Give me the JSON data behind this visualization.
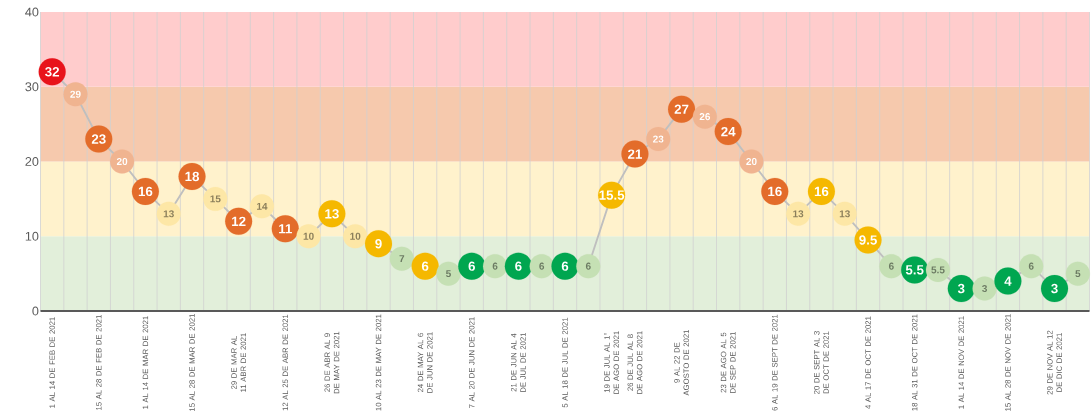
{
  "chart_data": {
    "type": "line",
    "categories": [
      "1 AL 14 DE FEB DE 2021",
      null,
      "15 AL 28 DE FEB DE 2021",
      null,
      "1 AL 14 DE MAR DE 2021",
      null,
      "15 AL 28 DE MAR DE 2021",
      null,
      "29 DE MAR AL 11 ABR DE 2021",
      null,
      "12 AL 25 DE ABR DE 2021",
      null,
      "26 DE ABR AL 9 DE MAY DE 2021",
      null,
      "10 AL 23 DE MAY DE 2021",
      null,
      "24 DE MAY AL 6 DE JUN DE 2021",
      null,
      "7 AL 20 DE JUN DE 2021",
      null,
      "21 DE JUN AL 4 DE JUL DE 2021",
      null,
      "5 AL 18 DE JUL DE 2021",
      null,
      "19 DE JUL AL 1° DE AGO DE 2021",
      "26 DE JUL AL 8 DE AGO DE 2021",
      null,
      "9 AL 22 DE AGOSTO DE 2021",
      null,
      "23 DE AGO AL 5 DE SEP DE 2021",
      null,
      "6 AL 19 DE SEPT DE 2021",
      null,
      "20 DE SEPT AL 3 DE OCT DE 2021",
      null,
      "4 AL 17 DE OCT DE 2021",
      null,
      "18 AL 31 DE OCT DE 2021",
      null,
      "1 AL 14 DE NOV DE 2021",
      null,
      "15 AL 28 DE NOV DE 2021",
      null,
      "29 DE NOV AL 12 DE DIC DE 2021",
      null
    ],
    "values": [
      32,
      29,
      23,
      20,
      16,
      13,
      18,
      15,
      12,
      14,
      11,
      10,
      13,
      10,
      9,
      7,
      6,
      5,
      6,
      6,
      6,
      6,
      6,
      6,
      15.5,
      21,
      23,
      27,
      26,
      24,
      20,
      16,
      13,
      16,
      13,
      9.5,
      6,
      5.5,
      5.5,
      3,
      3,
      4,
      6,
      3,
      5
    ],
    "color": "#bfbfbf",
    "colors": [
      "#e8131b",
      "#f0b490",
      "#e36c2a",
      "#f0b490",
      "#e36c2a",
      "#fde7a6",
      "#e36c2a",
      "#fde7a6",
      "#e36c2a",
      "#fde7a6",
      "#e36c2a",
      "#fde7a6",
      "#f5b800",
      "#fde7a6",
      "#f5b800",
      "#c5e0b4",
      "#f5b800",
      "#c5e0b4",
      "#00a650",
      "#c5e0b4",
      "#00a650",
      "#c5e0b4",
      "#00a650",
      "#c5e0b4",
      "#f5b800",
      "#e36c2a",
      "#f0b490",
      "#e36c2a",
      "#f0b490",
      "#e36c2a",
      "#f0b490",
      "#e36c2a",
      "#fde7a6",
      "#f5b800",
      "#fde7a6",
      "#f5b800",
      "#c5e0b4",
      "#00a650",
      "#c5e0b4",
      "#00a650",
      "#c5e0b4",
      "#00a650",
      "#c5e0b4",
      "#00a650",
      "#c5e0b4"
    ],
    "ylim": [
      0,
      40
    ],
    "yticks": [
      0,
      10,
      20,
      30,
      40
    ],
    "bands": [
      {
        "axis": "y",
        "from": 0,
        "to": 10,
        "color": "#e2efda"
      },
      {
        "axis": "y",
        "from": 10,
        "to": 20,
        "color": "#fff2cc"
      },
      {
        "axis": "y",
        "from": 20,
        "to": 30,
        "color": "#f6c9ad"
      },
      {
        "axis": "y",
        "from": 30,
        "to": 40,
        "color": "#ffcccc"
      }
    ],
    "grid": "x",
    "marker": "circle",
    "data_labels": true
  }
}
